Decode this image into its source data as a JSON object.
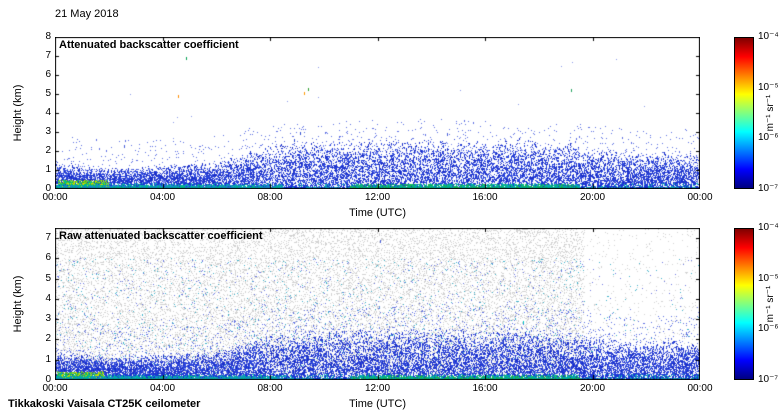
{
  "figure": {
    "date_label": "21 May 2018",
    "footer_label": "Tikkakoski Vaisala CT25K ceilometer",
    "background_color": "#ffffff"
  },
  "colorbar": {
    "tick_labels": [
      "10⁻⁴",
      "10⁻⁵",
      "10⁻⁶",
      "10⁻⁷"
    ],
    "unit_label": "m⁻¹ sr⁻¹",
    "colormap": "jet",
    "scale": "log10",
    "range": [
      "1e-7",
      "1e-4"
    ],
    "gradient_stops": [
      "#800000",
      "#ff0000",
      "#ff8000",
      "#ffff00",
      "#80ff80",
      "#00ffff",
      "#0080ff",
      "#0000ff",
      "#000080"
    ]
  },
  "chart_data": [
    {
      "type": "scatter",
      "title": "Attenuated backscatter coefficient",
      "xlabel": "Time (UTC)",
      "ylabel": "Height (km)",
      "xlim_hours": [
        0,
        24
      ],
      "xtick_labels": [
        "00:00",
        "04:00",
        "08:00",
        "12:00",
        "16:00",
        "20:00",
        "00:00"
      ],
      "ylim_km": [
        0,
        8
      ],
      "ytick_values": [
        0,
        1,
        2,
        3,
        4,
        5,
        6,
        7,
        8
      ],
      "value_scale": "log10",
      "value_range": [
        "1e-7",
        "1e-4"
      ],
      "seed": 1337,
      "n_points": 15000,
      "sparse_above": 900,
      "stray_dots": 18,
      "boundary_layer_top_km": [
        [
          0,
          1.15
        ],
        [
          1,
          1.0
        ],
        [
          2,
          0.85
        ],
        [
          3,
          0.9
        ],
        [
          4,
          1.0
        ],
        [
          5,
          1.05
        ],
        [
          6,
          1.1
        ],
        [
          7,
          1.5
        ],
        [
          8,
          1.8
        ],
        [
          9,
          1.9
        ],
        [
          10,
          2.0
        ],
        [
          11,
          2.0
        ],
        [
          12,
          2.05
        ],
        [
          13,
          2.1
        ],
        [
          14,
          2.05
        ],
        [
          15,
          2.1
        ],
        [
          16,
          2.0
        ],
        [
          17,
          2.1
        ],
        [
          18,
          2.0
        ],
        [
          19,
          1.9
        ],
        [
          20,
          1.75
        ],
        [
          21,
          1.6
        ],
        [
          22,
          1.5
        ],
        [
          23,
          1.5
        ],
        [
          24,
          1.45
        ]
      ],
      "surface_strong_layers": [
        {
          "hours": [
            0.1,
            2.0
          ],
          "top_km": 0.45,
          "density": 700,
          "colors": [
            "#19b24b",
            "#7ec818",
            "#cddc00",
            "#00c390"
          ]
        },
        {
          "hours": [
            0.0,
            8.5
          ],
          "top_km": 0.22,
          "density": 260,
          "colors": [
            "#00aab4",
            "#00b48c",
            "#1f7fd4"
          ]
        },
        {
          "hours": [
            11.0,
            19.5
          ],
          "top_km": 0.25,
          "density": 300,
          "colors": [
            "#00aab4",
            "#19b24b",
            "#00b48c"
          ]
        }
      ],
      "outlier_specks": [
        {
          "hour": 4.6,
          "km": 4.9,
          "color": "#ff8c00"
        },
        {
          "hour": 4.9,
          "km": 6.9,
          "color": "#00a050"
        },
        {
          "hour": 9.3,
          "km": 5.1,
          "color": "#ff9a00"
        },
        {
          "hour": 9.45,
          "km": 5.3,
          "color": "#2ea02e"
        },
        {
          "hour": 19.2,
          "km": 5.25,
          "color": "#21a35f"
        },
        {
          "hour": 9.15,
          "km": 3.0,
          "color": "#3050d0"
        },
        {
          "hour": 8.9,
          "km": 2.6,
          "color": "#3050d0"
        },
        {
          "hour": 2.6,
          "km": 2.3,
          "color": "#4a5fd9"
        },
        {
          "hour": 14.6,
          "km": 2.9,
          "color": "#4a5fd9"
        }
      ]
    },
    {
      "type": "scatter",
      "title": "Raw attenuated backscatter coefficient",
      "xlabel": "Time (UTC)",
      "ylabel": "Height (km)",
      "xlim_hours": [
        0,
        24
      ],
      "xtick_labels": [
        "00:00",
        "04:00",
        "08:00",
        "12:00",
        "16:00",
        "20:00",
        "00:00"
      ],
      "ylim_km": [
        0,
        7.5
      ],
      "ytick_values": [
        0,
        1,
        2,
        3,
        4,
        5,
        6,
        7
      ],
      "value_scale": "log10",
      "value_range": [
        "1e-7",
        "1e-4"
      ],
      "seed": 77,
      "n_points": 17000,
      "sparse_above": 1400,
      "stray_dots": 0,
      "ambient_noise": {
        "color": "#d2d2d2",
        "density": 0.22,
        "fade_after_hour": 19.7,
        "faded_ratio": 0.13,
        "blue_fleck_count": 2600,
        "blue_fleck_colors": [
          "#6b79e0",
          "#41b1c9"
        ]
      },
      "boundary_layer_top_km": [
        [
          0,
          1.1
        ],
        [
          1,
          1.0
        ],
        [
          2,
          0.9
        ],
        [
          3,
          0.9
        ],
        [
          4,
          1.0
        ],
        [
          5,
          1.05
        ],
        [
          6,
          1.1
        ],
        [
          7,
          1.45
        ],
        [
          8,
          1.75
        ],
        [
          9,
          1.85
        ],
        [
          10,
          1.95
        ],
        [
          11,
          1.95
        ],
        [
          12,
          2.0
        ],
        [
          13,
          2.05
        ],
        [
          14,
          2.0
        ],
        [
          15,
          2.05
        ],
        [
          16,
          1.95
        ],
        [
          17,
          2.05
        ],
        [
          18,
          1.95
        ],
        [
          19,
          1.85
        ],
        [
          20,
          1.7
        ],
        [
          21,
          1.55
        ],
        [
          22,
          1.5
        ],
        [
          23,
          1.5
        ],
        [
          24,
          1.45
        ]
      ],
      "surface_strong_layers": [
        {
          "hours": [
            0.1,
            1.8
          ],
          "top_km": 0.4,
          "density": 650,
          "colors": [
            "#19b24b",
            "#7ec818",
            "#cddc00",
            "#00c390"
          ]
        },
        {
          "hours": [
            0.0,
            8.5
          ],
          "top_km": 0.2,
          "density": 240,
          "colors": [
            "#00aab4",
            "#00b48c",
            "#1f7fd4"
          ]
        },
        {
          "hours": [
            11.0,
            19.5
          ],
          "top_km": 0.22,
          "density": 280,
          "colors": [
            "#00aab4",
            "#19b24b",
            "#00b48c"
          ]
        }
      ],
      "outlier_specks": [
        {
          "hour": 17.45,
          "km": 2.9,
          "color": "#00c8c8"
        },
        {
          "hour": 12.1,
          "km": 6.9,
          "color": "#4a5fd9"
        }
      ]
    }
  ]
}
